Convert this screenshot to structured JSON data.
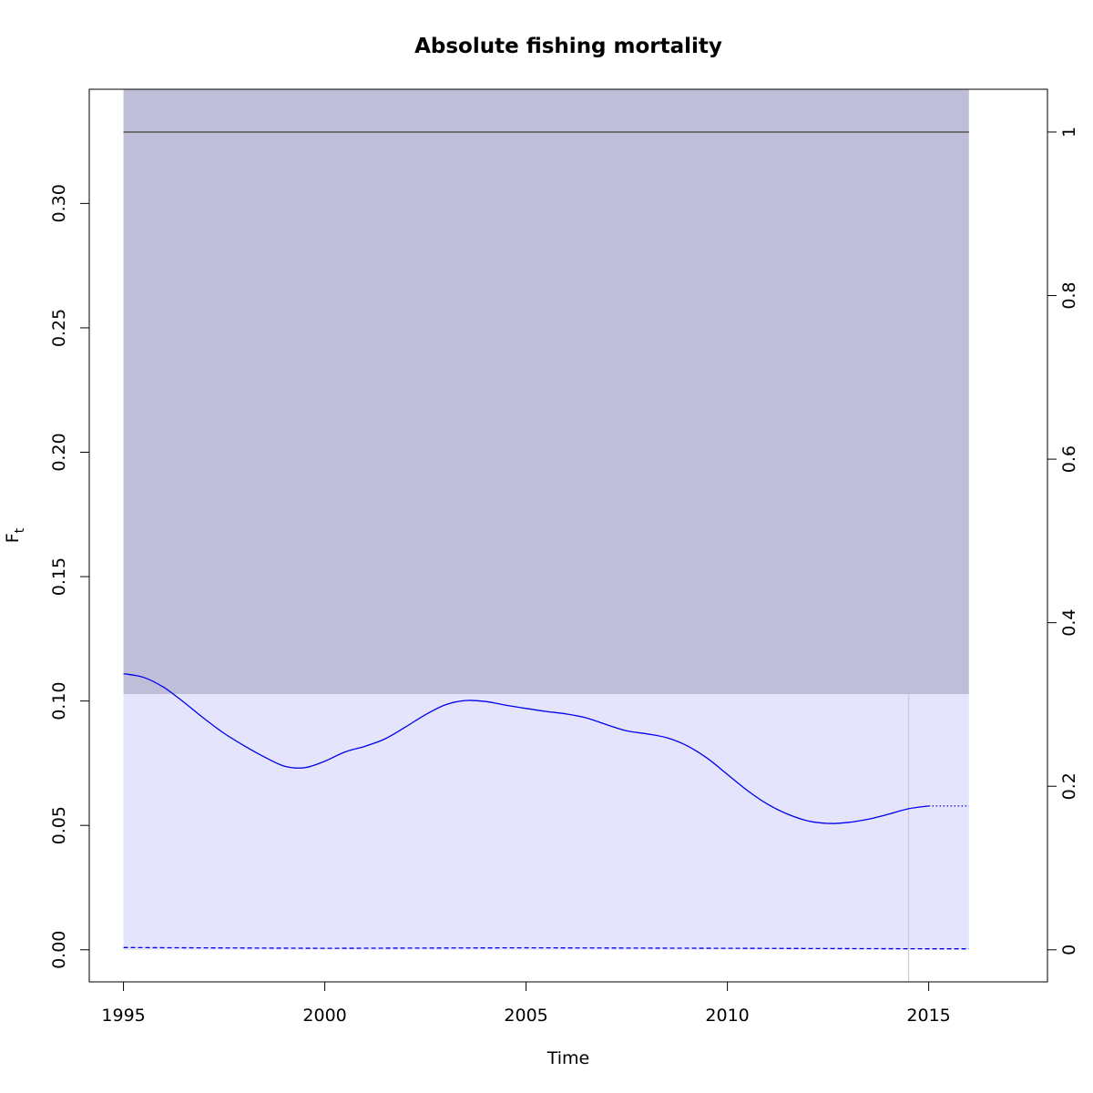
{
  "chart_data": {
    "type": "line",
    "title": "Absolute fishing mortality",
    "xlabel": "Time",
    "ylabel_main": "F",
    "ylabel_sub": "t",
    "xlim": [
      1994.15,
      2017.95
    ],
    "ylim": [
      -0.0129,
      0.3459
    ],
    "ylim_right": [
      -0.0392,
      1.0523
    ],
    "x_ticks": [
      1995,
      2000,
      2005,
      2010,
      2015
    ],
    "y_ticks": [
      0.0,
      0.05,
      0.1,
      0.15,
      0.2,
      0.25,
      0.3
    ],
    "y_tick_labels": [
      "0.00",
      "0.05",
      "0.10",
      "0.15",
      "0.20",
      "0.25",
      "0.30"
    ],
    "y2_ticks": [
      0,
      0.2,
      0.4,
      0.6,
      0.8,
      1
    ],
    "y2_tick_labels": [
      "0",
      "0.2",
      "0.4",
      "0.6",
      "0.8",
      "1"
    ],
    "grid": false,
    "confidence_band": {
      "x_start": 1995,
      "x_end": 2016,
      "lower": 0.0,
      "upper": 0.1028,
      "color": "#e4e4fc"
    },
    "upper_band": {
      "x_start": 1995,
      "x_end": 2016,
      "lower": 0.1028,
      "upper": 0.3459,
      "color": "#bebed9"
    },
    "reference_line": {
      "x_start": 1995,
      "x_end": 2016,
      "y_right": 1,
      "color": "#555555"
    },
    "vertical_line": {
      "x": 2014.5,
      "color": "#cccccc"
    },
    "series": [
      {
        "style": "solid",
        "color": "#0000ee",
        "x": [
          1995,
          1995.5,
          1996,
          1996.5,
          1997,
          1997.5,
          1998,
          1998.5,
          1999,
          1999.5,
          2000,
          2000.5,
          2001,
          2001.5,
          2002,
          2002.5,
          2003,
          2003.5,
          2004,
          2004.5,
          2005,
          2005.5,
          2006,
          2006.5,
          2007,
          2007.5,
          2008,
          2008.5,
          2009,
          2009.5,
          2010,
          2010.5,
          2011,
          2011.5,
          2012,
          2012.5,
          2013,
          2013.5,
          2014,
          2014.5,
          2015
        ],
        "y": [
          0.111,
          0.1095,
          0.1055,
          0.0995,
          0.093,
          0.087,
          0.082,
          0.0775,
          0.0738,
          0.0732,
          0.0758,
          0.0795,
          0.0818,
          0.0848,
          0.0895,
          0.0945,
          0.0985,
          0.1002,
          0.0998,
          0.0983,
          0.097,
          0.0958,
          0.0948,
          0.0932,
          0.0905,
          0.088,
          0.0868,
          0.0852,
          0.082,
          0.077,
          0.0705,
          0.064,
          0.0585,
          0.0545,
          0.0518,
          0.0508,
          0.0512,
          0.0525,
          0.0545,
          0.0567,
          0.0578
        ]
      },
      {
        "style": "dotted",
        "color": "#0000ee",
        "x": [
          2015,
          2016
        ],
        "y": [
          0.0578,
          0.0578
        ]
      },
      {
        "style": "dashed",
        "color": "#0000ee",
        "x": [
          1995,
          2000,
          2005,
          2010,
          2015,
          2016
        ],
        "y": [
          0.0009,
          0.0006,
          0.0008,
          0.0006,
          0.0004,
          0.0004
        ]
      }
    ]
  }
}
